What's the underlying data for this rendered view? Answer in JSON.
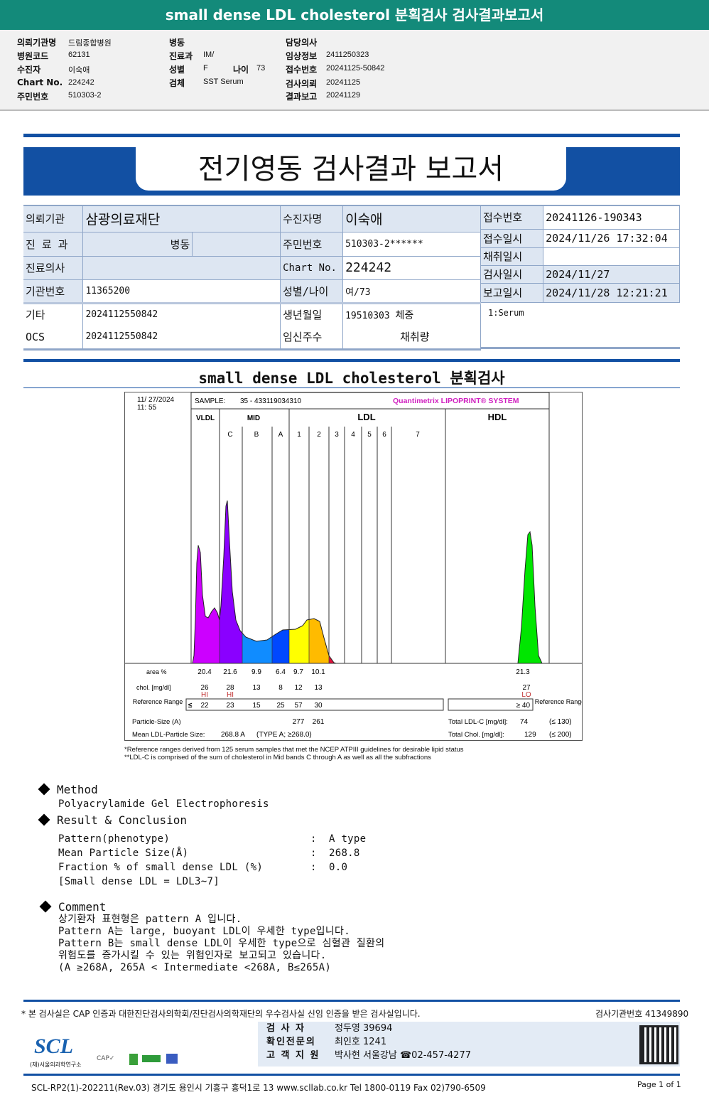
{
  "title_bar": "small dense LDL cholesterol 분획검사 검사결과보고서",
  "header": {
    "col1": [
      [
        "의뢰기관명",
        "드림종합병원"
      ],
      [
        "병원코드",
        "62131"
      ],
      [
        "수진자",
        "이숙애"
      ],
      [
        "Chart No.",
        "224242"
      ],
      [
        "주민번호",
        "510303-2"
      ]
    ],
    "col2": [
      [
        "병동",
        ""
      ],
      [
        "진료과",
        "IM/"
      ],
      [
        "성별",
        "F"
      ],
      [
        "검체",
        "SST Serum"
      ]
    ],
    "age_label": "나이",
    "age_value": "73",
    "col3": [
      [
        "담당의사",
        ""
      ],
      [
        "임상정보",
        "2411250323"
      ],
      [
        "접수번호",
        "20241125-50842"
      ],
      [
        "검사의뢰",
        "20241125"
      ],
      [
        "결과보고",
        "20241129"
      ]
    ]
  },
  "report_title": "전기영동 검사결과 보고서",
  "patient_table": {
    "left": {
      "의뢰기관": "삼광의료재단",
      "진료과_label": "진 료 과",
      "병동": "병동",
      "진료의사": "진료의사",
      "기관번호_label": "기관번호",
      "기관번호": "11365200",
      "기타_label": "기타",
      "기타": "2024112550842",
      "ocs_label": "OCS",
      "ocs": "2024112550842",
      "의뢰기관_label": "의뢰기관"
    },
    "mid": {
      "수진자명_label": "수진자명",
      "수진자명": "이숙애",
      "주민번호_label": "주민번호",
      "주민번호": "510303-2******",
      "chart_label": "Chart No.",
      "chart": "224242",
      "sex_age_label": "성별/나이",
      "sex_age": "여/73",
      "birth_label": "생년월일",
      "birth": "19510303",
      "weight_label": "체중",
      "preg_label": "임신주수",
      "amount_label": "채취량"
    },
    "right": [
      [
        "접수번호",
        "20241126-190343"
      ],
      [
        "접수일시",
        "2024/11/26 17:32:04"
      ],
      [
        "채취일시",
        ""
      ],
      [
        "검사일시",
        "2024/11/27"
      ],
      [
        "보고일시",
        "2024/11/28 12:21:21"
      ]
    ],
    "specimen": "1:Serum"
  },
  "section_title": "small dense LDL cholesterol 분획검사",
  "chart_data": {
    "type": "area",
    "date": "11/ 27/2024",
    "time": "11: 55",
    "sample_label": "SAMPLE:",
    "sample": "35 - 433119034310",
    "brand": "Quantimetrix LIPOPRINT® SYSTEM",
    "groups": [
      "VLDL",
      "MID",
      "LDL",
      "HDL"
    ],
    "subbands": [
      "C",
      "B",
      "A",
      "1",
      "2",
      "3",
      "4",
      "5",
      "6",
      "7"
    ],
    "band_colors": {
      "VLDL": "#cc00ff",
      "C": "#8a00ff",
      "B": "#108cff",
      "A": "#0048ff",
      "1": "#ffff00",
      "2": "#ffbb00",
      "3": "#e0103c",
      "HDL": "#00e600"
    },
    "rows": {
      "area_label": "area %",
      "area": [
        "20.4",
        "21.6",
        "9.9",
        "6.4",
        "9.7",
        "10.1"
      ],
      "hdl_area": "21.3",
      "chol_label": "chol. [mg/dl]",
      "chol": [
        "26",
        "28",
        "13",
        "8",
        "12",
        "13"
      ],
      "hdl_chol": "27",
      "flags": [
        "HI",
        "HI"
      ],
      "hdl_flag": "LO",
      "ref_label": "Reference Range",
      "ref": [
        "22",
        "23",
        "15",
        "25",
        "57",
        "30"
      ],
      "ref_le": "≤",
      "hdl_ref": "≥  40",
      "ref_label_right": "Reference Range",
      "psize_label": "Particle-Size (A)",
      "psize": [
        "277",
        "261"
      ],
      "mean_label": "Mean LDL-Particle Size:",
      "mean": "268.8 A",
      "mean_type": "(TYPE A; ≥268.0)",
      "total_ldl_label": "Total LDL-C [mg/dl]:",
      "total_ldl": "74",
      "total_ldl_ref": "(≤ 130)",
      "total_chol_label": "Total Chol. [mg/dl]:",
      "total_chol": "129",
      "total_chol_ref": "(≤ 200)"
    },
    "footnotes": [
      "*Reference ranges derived from 125 serum samples that met the NCEP ATPIII guidelines for desirable lipid status",
      "**LDL-C is comprised of the sum of cholesterol in Mid bands C through A as well as all the subfractions"
    ]
  },
  "method": {
    "title": "Method",
    "text": "Polyacrylamide Gel Electrophoresis"
  },
  "result": {
    "title": "Result & Conclusion",
    "rows": [
      [
        "Pattern(phenotype)",
        "A type"
      ],
      [
        "Mean Particle Size(Å)",
        "268.8"
      ],
      [
        "Fraction % of small dense LDL (%)",
        "0.0"
      ]
    ],
    "note": "[Small dense LDL = LDL3~7]"
  },
  "comment": {
    "title": "Comment",
    "lines": [
      "상기환자 표현형은 pattern A 입니다.",
      "Pattern A는 large, buoyant LDL이 우세한 type입니다.",
      "Pattern B는 small dense LDL이 우세한 type으로 심혈관 질환의",
      "위험도를 증가시킬 수 있는 위험인자로 보고되고 있습니다.",
      "(A ≥268A, 265A < Intermediate <268A, B≤265A)"
    ]
  },
  "footer": {
    "cert_note": "* 본 검사실은 CAP 인증과 대한진단검사의학회/진단검사의학재단의 우수검사실 신임 인증을 받은 검사실입니다.",
    "lab_no": "검사기관번호 41349890",
    "staff": [
      [
        "검 사 자",
        "정두영 39694"
      ],
      [
        "확인전문의",
        "최인호 1241"
      ],
      [
        "고 객 지 원",
        "박사현 서울강남 ☎02-457-4277"
      ]
    ],
    "logo": "SCL",
    "logo_sub": "(재)서울의과학연구소",
    "address": "SCL-RP2(1)-202211(Rev.03) 경기도 용인시 기흥구 흥덕1로 13 www.scllab.co.kr Tel 1800-0119 Fax 02)790-6509",
    "page": "Page 1 of 1"
  }
}
